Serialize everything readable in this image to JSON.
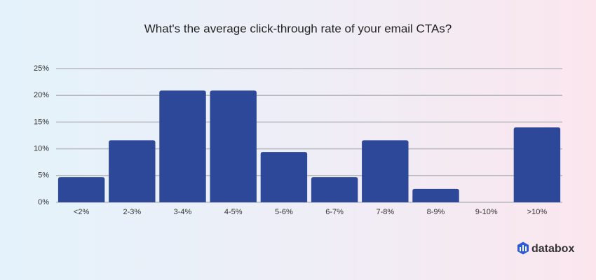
{
  "chart_data": {
    "type": "bar",
    "title": "What's the average click-through rate of your email CTAs?",
    "categories": [
      "<2%",
      "2-3%",
      "3-4%",
      "4-5%",
      "5-6%",
      "6-7%",
      "7-8%",
      "8-9%",
      "9-10%",
      ">10%"
    ],
    "values": [
      4.7,
      11.6,
      20.9,
      20.9,
      9.4,
      4.7,
      11.6,
      2.5,
      0,
      14.0
    ],
    "color": "#2d4899",
    "ylim": [
      0,
      25
    ],
    "yticks": [
      {
        "value": 0,
        "label": "0%"
      },
      {
        "value": 5,
        "label": "5%"
      },
      {
        "value": 10,
        "label": "10%"
      },
      {
        "value": 15,
        "label": "15%"
      },
      {
        "value": 20,
        "label": "20%"
      },
      {
        "value": 25,
        "label": "25%"
      }
    ],
    "grid": true
  },
  "watermark": "databox"
}
